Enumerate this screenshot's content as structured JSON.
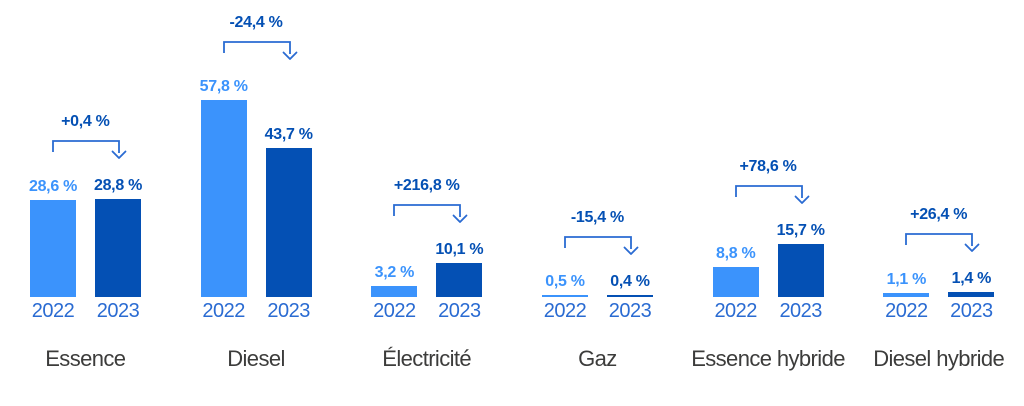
{
  "chart_data": {
    "type": "bar",
    "title": "",
    "unit": "%",
    "grid": false,
    "legend": "none",
    "ylim": [
      0,
      60
    ],
    "categories": [
      "Essence",
      "Diesel",
      "Électricité",
      "Gaz",
      "Essence hybride",
      "Diesel hybride"
    ],
    "series": [
      {
        "name": "2022",
        "color": "#3b93fc",
        "values": [
          28.6,
          57.8,
          3.2,
          0.5,
          8.8,
          1.1
        ]
      },
      {
        "name": "2023",
        "color": "#0450b4",
        "values": [
          28.8,
          43.7,
          10.1,
          0.4,
          15.7,
          1.4
        ]
      }
    ],
    "groups": [
      {
        "label": "Essence",
        "value_2022_label": "28,6 %",
        "value_2023_label": "28,8 %",
        "change_label": "+0,4 %"
      },
      {
        "label": "Diesel",
        "value_2022_label": "57,8 %",
        "value_2023_label": "43,7 %",
        "change_label": "-24,4 %"
      },
      {
        "label": "Électricité",
        "value_2022_label": "3,2 %",
        "value_2023_label": "10,1 %",
        "change_label": "+216,8 %"
      },
      {
        "label": "Gaz",
        "value_2022_label": "0,5 %",
        "value_2023_label": "0,4 %",
        "change_label": "-15,4 %"
      },
      {
        "label": "Essence hybride",
        "value_2022_label": "8,8 %",
        "value_2023_label": "15,7 %",
        "change_label": "+78,6 %"
      },
      {
        "label": "Diesel hybride",
        "value_2022_label": "1,1 %",
        "value_2023_label": "1,4 %",
        "change_label": "+26,4 %"
      }
    ]
  },
  "colors": {
    "bar_2022": "#3b93fc",
    "bar_2023": "#0450b4",
    "value_2022_text": "#3b93fc",
    "value_2023_text": "#0450b4",
    "change_text": "#0450b4",
    "year_text": "#2a6bd2",
    "bracket": "#2a6bd2",
    "category_text": "#3c3c3b",
    "background": "#ffffff"
  }
}
